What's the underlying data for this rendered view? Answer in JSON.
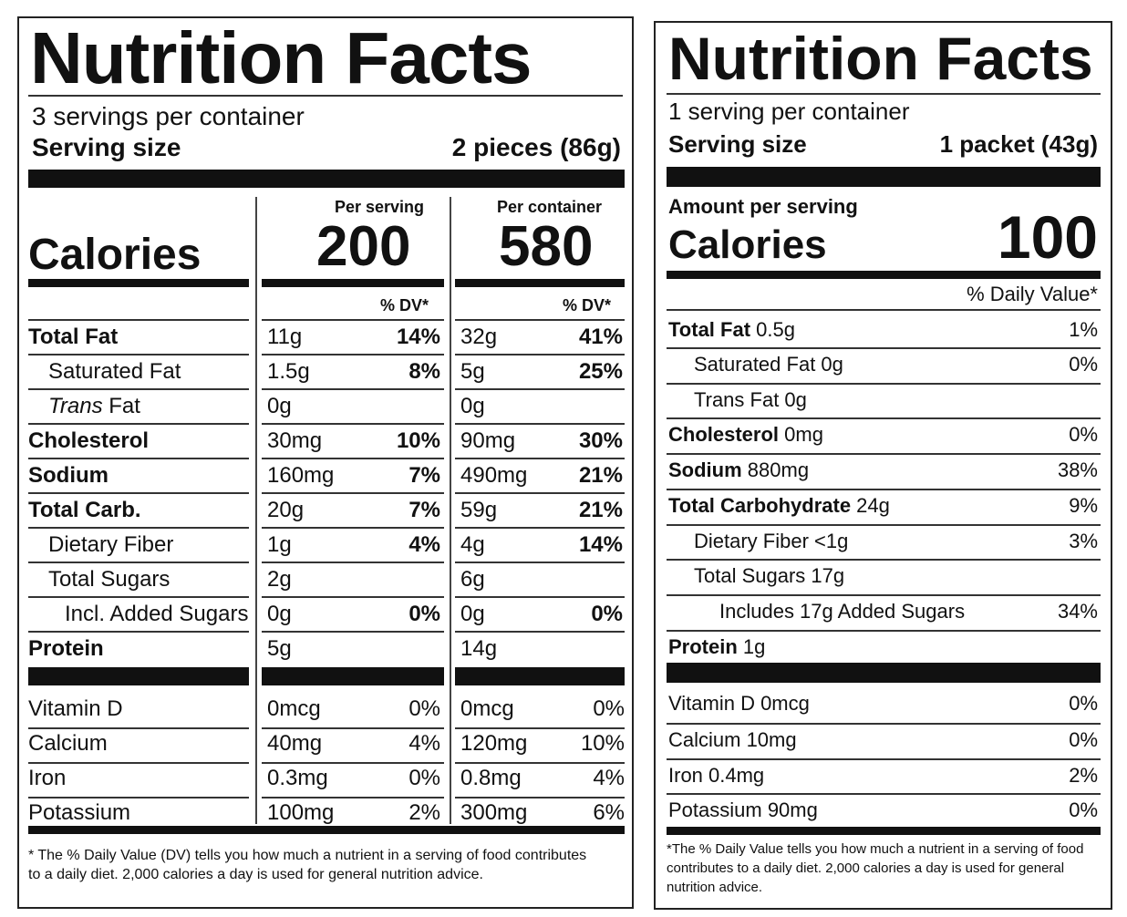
{
  "left": {
    "title": "Nutrition Facts",
    "servings": "3 servings per container",
    "serving_size_label": "Serving size",
    "serving_size_value": "2 pieces (86g)",
    "per_serving_header": "Per serving",
    "per_container_header": "Per container",
    "calories_label": "Calories",
    "calories_serving": "200",
    "calories_container": "580",
    "dv_header": "% DV*",
    "nutrients": [
      {
        "name": "Total Fat",
        "s_amt": "11g",
        "s_dv": "14%",
        "c_amt": "32g",
        "c_dv": "41%"
      },
      {
        "name": "Saturated Fat",
        "s_amt": "1.5g",
        "s_dv": "8%",
        "c_amt": "5g",
        "c_dv": "25%"
      },
      {
        "name_italic": "Trans",
        "name_rest": " Fat",
        "s_amt": "0g",
        "s_dv": "",
        "c_amt": "0g",
        "c_dv": ""
      },
      {
        "name": "Cholesterol",
        "s_amt": "30mg",
        "s_dv": "10%",
        "c_amt": "90mg",
        "c_dv": "30%"
      },
      {
        "name": "Sodium",
        "s_amt": "160mg",
        "s_dv": "7%",
        "c_amt": "490mg",
        "c_dv": "21%"
      },
      {
        "name": "Total Carb.",
        "s_amt": "20g",
        "s_dv": "7%",
        "c_amt": "59g",
        "c_dv": "21%"
      },
      {
        "name": "Dietary Fiber",
        "s_amt": "1g",
        "s_dv": "4%",
        "c_amt": "4g",
        "c_dv": "14%"
      },
      {
        "name": "Total Sugars",
        "s_amt": "2g",
        "s_dv": "",
        "c_amt": "6g",
        "c_dv": ""
      },
      {
        "name": "Incl. Added Sugars",
        "s_amt": "0g",
        "s_dv": "0%",
        "c_amt": "0g",
        "c_dv": "0%"
      },
      {
        "name": "Protein",
        "s_amt": "5g",
        "s_dv": "",
        "c_amt": "14g",
        "c_dv": ""
      }
    ],
    "vitamins": [
      {
        "name": "Vitamin D",
        "s_amt": "0mcg",
        "s_dv": "0%",
        "c_amt": "0mcg",
        "c_dv": "0%"
      },
      {
        "name": "Calcium",
        "s_amt": "40mg",
        "s_dv": "4%",
        "c_amt": "120mg",
        "c_dv": "10%"
      },
      {
        "name": "Iron",
        "s_amt": "0.3mg",
        "s_dv": "0%",
        "c_amt": "0.8mg",
        "c_dv": "4%"
      },
      {
        "name": "Potassium",
        "s_amt": "100mg",
        "s_dv": "2%",
        "c_amt": "300mg",
        "c_dv": "6%"
      }
    ],
    "footnote": "* The % Daily Value (DV) tells you how much a nutrient in a serving of food contributes to a daily diet. 2,000 calories a day is used for general nutrition advice."
  },
  "right": {
    "title": "Nutrition Facts",
    "servings": "1 serving per container",
    "serving_size_label": "Serving size",
    "serving_size_value": "1 packet (43g)",
    "amount_per_serving": "Amount per serving",
    "calories_label": "Calories",
    "calories_value": "100",
    "dv_header": "% Daily Value*",
    "nutrients": [
      {
        "name": "Total Fat",
        "amt": " 0.5g",
        "dv": "1%"
      },
      {
        "name": "Saturated Fat 0g",
        "amt": "",
        "dv": "0%"
      },
      {
        "name": "Trans Fat 0g",
        "amt": "",
        "dv": ""
      },
      {
        "name": "Cholesterol",
        "amt": " 0mg",
        "dv": "0%"
      },
      {
        "name": "Sodium",
        "amt": " 880mg",
        "dv": "38%"
      },
      {
        "name": "Total Carbohydrate",
        "amt": " 24g",
        "dv": "9%"
      },
      {
        "name": "Dietary Fiber <1g",
        "amt": "",
        "dv": "3%"
      },
      {
        "name": "Total Sugars 17g",
        "amt": "",
        "dv": ""
      },
      {
        "name": "Includes 17g Added Sugars",
        "amt": "",
        "dv": "34%"
      },
      {
        "name": "Protein",
        "amt": " 1g",
        "dv": ""
      }
    ],
    "vitamins": [
      {
        "name": "Vitamin D 0mcg",
        "dv": "0%"
      },
      {
        "name": "Calcium 10mg",
        "dv": "0%"
      },
      {
        "name": "Iron 0.4mg",
        "dv": "2%"
      },
      {
        "name": "Potassium 90mg",
        "dv": "0%"
      }
    ],
    "footnote": "*The % Daily Value tells you how much a nutrient in a serving of food contributes to a daily diet. 2,000 calories a day is used for general nutrition advice."
  }
}
